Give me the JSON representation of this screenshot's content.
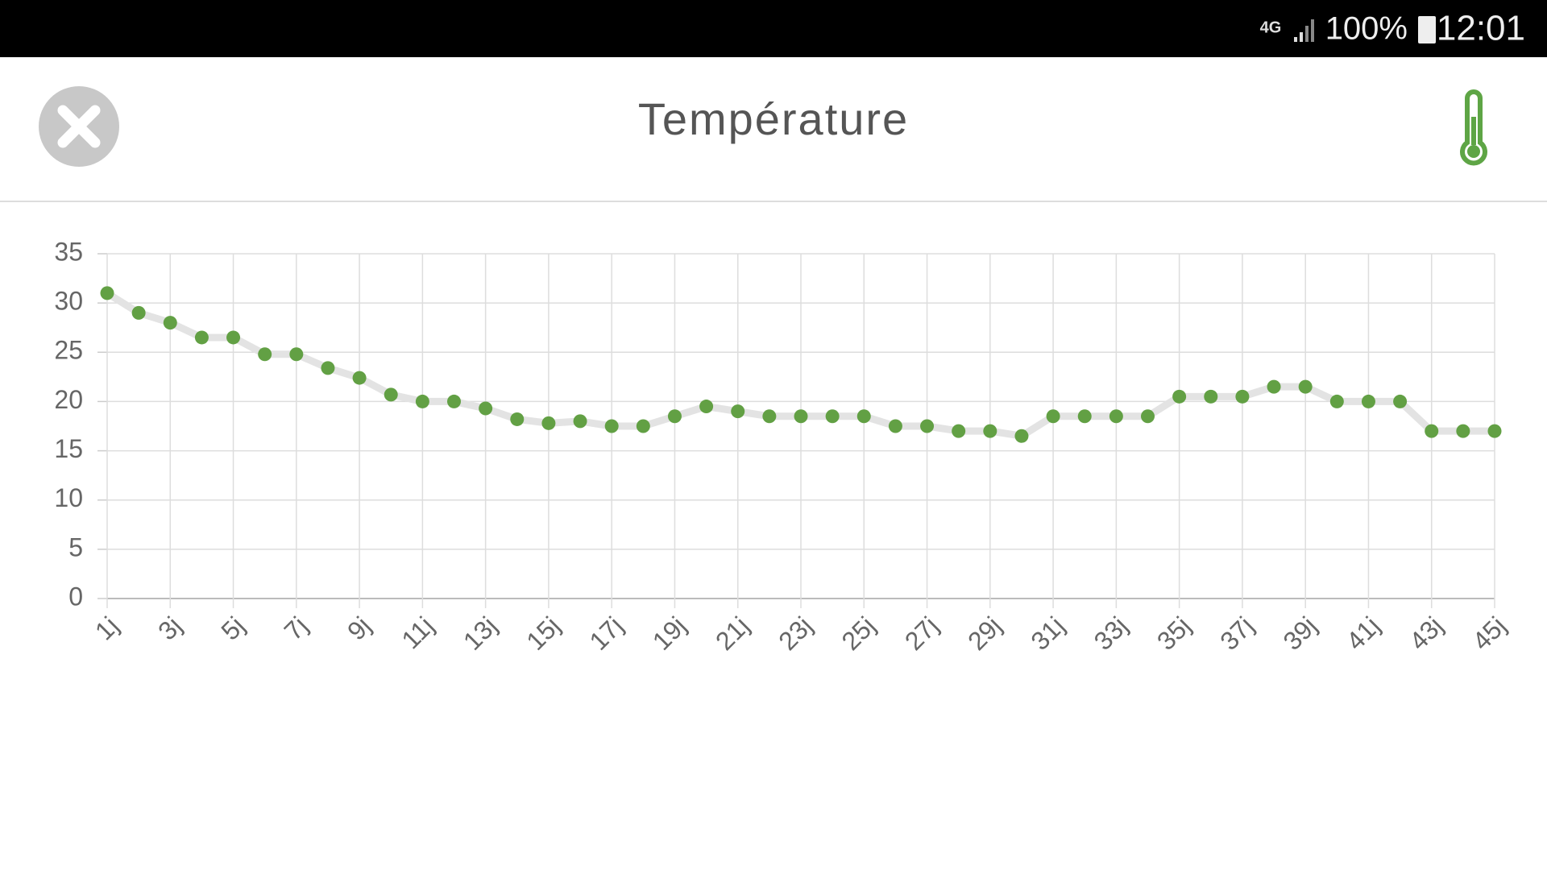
{
  "status_bar": {
    "network": "4G",
    "battery": "100%",
    "time": "12:01"
  },
  "header": {
    "title": "Température"
  },
  "chart_data": {
    "type": "line",
    "categories": [
      "1j",
      null,
      "3j",
      null,
      "5j",
      null,
      "7j",
      null,
      "9j",
      null,
      "11j",
      null,
      "13j",
      null,
      "15j",
      null,
      "17j",
      null,
      "19j",
      null,
      "21j",
      null,
      "23j",
      null,
      "25j",
      null,
      "27j",
      null,
      "29j",
      null,
      "31j",
      null,
      "33j",
      null,
      "35j",
      null,
      "37j",
      null,
      "39j",
      null,
      "41j",
      null,
      "43j",
      null,
      "45j"
    ],
    "values": [
      31,
      29,
      28,
      26.5,
      26.5,
      24.8,
      24.8,
      23.4,
      22.4,
      20.7,
      20,
      20,
      19.3,
      18.2,
      17.8,
      18,
      17.5,
      17.5,
      18.5,
      19.5,
      19,
      18.5,
      18.5,
      18.5,
      18.5,
      17.5,
      17.5,
      17,
      17,
      16.5,
      18.5,
      18.5,
      18.5,
      18.5,
      20.5,
      20.5,
      20.5,
      21.5,
      21.5,
      20,
      20,
      20,
      17,
      17,
      17
    ],
    "color": "#62a044",
    "line_color": "#e3e3e3",
    "ylim": [
      0,
      35
    ],
    "yticks": [
      0,
      5,
      10,
      15,
      20,
      25,
      30,
      35
    ],
    "grid": true
  }
}
